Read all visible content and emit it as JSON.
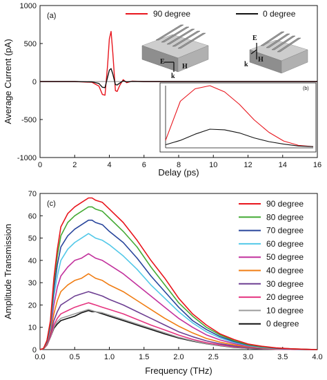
{
  "chart_data": [
    {
      "panel": "(a)",
      "type": "line",
      "xlabel": "Delay (ps)",
      "ylabel": "Average Current (pA)",
      "xlim": [
        0,
        16
      ],
      "ylim": [
        -1000,
        1000
      ],
      "xticks": [
        "0",
        "2",
        "4",
        "6",
        "8",
        "10",
        "12",
        "14",
        "16"
      ],
      "yticks": [
        "1000",
        "500",
        "0",
        "-500",
        "-1000"
      ],
      "legend_position": "top-right",
      "series": [
        {
          "name": "90 degree",
          "color": "#e8141c",
          "x": [
            0,
            2,
            3,
            3.4,
            3.6,
            3.75,
            3.9,
            4.0,
            4.1,
            4.2,
            4.35,
            4.45,
            4.6,
            4.8,
            5.0,
            5.3,
            6,
            16
          ],
          "y": [
            0,
            0,
            -10,
            -60,
            -170,
            -180,
            220,
            560,
            660,
            380,
            -120,
            -130,
            -50,
            25,
            -15,
            5,
            0,
            0
          ]
        },
        {
          "name": "0 degree",
          "color": "#111111",
          "x": [
            0,
            2,
            3,
            3.4,
            3.6,
            3.75,
            3.9,
            4.0,
            4.1,
            4.2,
            4.35,
            4.45,
            4.6,
            4.8,
            5.0,
            5.3,
            6,
            16
          ],
          "y": [
            0,
            0,
            -5,
            -25,
            -75,
            -80,
            60,
            150,
            170,
            100,
            -40,
            -45,
            -20,
            10,
            -5,
            2,
            0,
            0
          ]
        }
      ],
      "inset": {
        "label": "(b)",
        "axes_visible": [
          "left",
          "bottom"
        ],
        "series": [
          {
            "name": "90 degree",
            "color": "#e8141c",
            "x": [
              0.0,
              0.1,
              0.2,
              0.3,
              0.4,
              0.5,
              0.6,
              0.7,
              0.8,
              0.9,
              1.0
            ],
            "y": [
              0.12,
              0.75,
              0.95,
              1.0,
              0.9,
              0.7,
              0.45,
              0.25,
              0.11,
              0.04,
              0.02
            ]
          },
          {
            "name": "0 degree",
            "color": "#111111",
            "x": [
              0.0,
              0.1,
              0.2,
              0.3,
              0.4,
              0.5,
              0.6,
              0.7,
              0.8,
              0.9,
              1.0
            ],
            "y": [
              0.05,
              0.12,
              0.22,
              0.3,
              0.29,
              0.24,
              0.16,
              0.1,
              0.06,
              0.03,
              0.02
            ]
          }
        ]
      },
      "diagram_labels": [
        {
          "text": "E",
          "group": "left"
        },
        {
          "text": "H",
          "group": "left"
        },
        {
          "text": "k",
          "group": "left"
        },
        {
          "text": "E",
          "group": "right"
        },
        {
          "text": "H",
          "group": "right"
        },
        {
          "text": "k",
          "group": "right"
        }
      ]
    },
    {
      "panel": "(c)",
      "type": "line",
      "xlabel": "Frequency (THz)",
      "ylabel": "Amplitude Transmission",
      "xlim": [
        0,
        4.0
      ],
      "ylim": [
        0,
        70
      ],
      "xticks": [
        "0.0",
        "0.5",
        "1.0",
        "1.5",
        "2.0",
        "2.5",
        "3.0",
        "3.5",
        "4.0"
      ],
      "yticks": [
        "0",
        "10",
        "20",
        "30",
        "40",
        "50",
        "60",
        "70"
      ],
      "legend_position": "right",
      "x": [
        0.0,
        0.05,
        0.1,
        0.15,
        0.2,
        0.25,
        0.3,
        0.4,
        0.5,
        0.6,
        0.7,
        0.75,
        0.8,
        0.9,
        1.0,
        1.2,
        1.4,
        1.6,
        1.8,
        2.0,
        2.2,
        2.4,
        2.6,
        2.8,
        3.0,
        3.2,
        3.4,
        3.6,
        3.8,
        4.0
      ],
      "series": [
        {
          "name": "90 degree",
          "color": "#e8141c",
          "values": [
            0,
            0.5,
            4,
            13,
            32,
            45,
            55,
            61,
            64,
            66,
            68,
            68,
            67,
            66,
            63,
            57,
            49,
            40,
            32,
            23,
            16,
            11,
            7,
            4.5,
            2.5,
            1.5,
            0.8,
            0.4,
            0.2,
            0
          ]
        },
        {
          "name": "80 degree",
          "color": "#44aa34",
          "values": [
            0,
            0.5,
            4,
            12,
            30,
            42,
            51,
            57,
            60,
            62,
            64,
            64,
            63,
            62,
            59,
            53,
            46,
            37,
            29,
            21,
            15,
            10,
            6.5,
            4,
            2.2,
            1.3,
            0.7,
            0.4,
            0.2,
            0
          ]
        },
        {
          "name": "70 degree",
          "color": "#27449b",
          "values": [
            0,
            0.5,
            3.5,
            11,
            27,
            38,
            46,
            51,
            54,
            56,
            58,
            58,
            57,
            56,
            53,
            48,
            41,
            33,
            26,
            19,
            13,
            9,
            5.8,
            3.6,
            2,
            1.2,
            0.6,
            0.3,
            0.15,
            0
          ]
        },
        {
          "name": "60 degree",
          "color": "#52c8e8",
          "values": [
            0,
            0.4,
            3.2,
            10,
            24,
            33,
            40,
            45,
            48,
            50,
            52,
            51,
            50,
            49,
            47,
            42,
            36,
            29,
            23,
            17,
            12,
            8,
            5.2,
            3.2,
            1.8,
            1,
            0.5,
            0.3,
            0.1,
            0
          ]
        },
        {
          "name": "50 degree",
          "color": "#c2319d",
          "values": [
            0,
            0.4,
            3,
            9,
            20,
            28,
            33,
            37,
            40,
            41,
            43,
            42,
            41,
            40,
            38,
            34,
            29,
            24,
            19,
            14,
            10,
            6.6,
            4.3,
            2.7,
            1.5,
            0.9,
            0.4,
            0.2,
            0.1,
            0
          ]
        },
        {
          "name": "40 degree",
          "color": "#f07d13",
          "values": [
            0,
            0.3,
            2.5,
            8,
            16,
            22,
            26,
            29,
            31,
            32,
            34,
            33,
            32,
            31,
            29,
            26,
            22,
            18,
            14,
            10.5,
            7.5,
            5,
            3.3,
            2.1,
            1.2,
            0.7,
            0.3,
            0.2,
            0.1,
            0
          ]
        },
        {
          "name": "30 degree",
          "color": "#6d3f92",
          "values": [
            0,
            0.3,
            2.2,
            7,
            13,
            17,
            20,
            22,
            24,
            25,
            26,
            25.5,
            25,
            24,
            22.5,
            20,
            17,
            14,
            11,
            8,
            5.8,
            3.9,
            2.6,
            1.6,
            0.9,
            0.5,
            0.3,
            0.1,
            0.05,
            0
          ]
        },
        {
          "name": "20 degree",
          "color": "#e5337f",
          "values": [
            0,
            0.3,
            2,
            6,
            11,
            14,
            16,
            17.5,
            19,
            20,
            21,
            20.5,
            20,
            19,
            18,
            16,
            13.5,
            11,
            8.8,
            6.5,
            4.6,
            3.1,
            2.1,
            1.3,
            0.8,
            0.4,
            0.2,
            0.1,
            0.05,
            0
          ]
        },
        {
          "name": "10 degree",
          "color": "#9b9b9b",
          "values": [
            0,
            0.3,
            2,
            5.5,
            10,
            12.5,
            14,
            15,
            16,
            17,
            18,
            17.5,
            17,
            16.5,
            15.5,
            13.5,
            11.5,
            9.5,
            7.5,
            5.5,
            4,
            2.7,
            1.8,
            1.1,
            0.6,
            0.3,
            0.2,
            0.1,
            0.05,
            0
          ]
        },
        {
          "name": "0 degree",
          "color": "#111111",
          "values": [
            0,
            0.3,
            2,
            5.5,
            9.5,
            11.5,
            13,
            14,
            15,
            16.5,
            17.5,
            17,
            17,
            16,
            15,
            13,
            11,
            9,
            7,
            5.2,
            3.8,
            2.6,
            1.7,
            1,
            0.6,
            0.3,
            0.2,
            0.1,
            0.05,
            0
          ]
        }
      ]
    }
  ]
}
